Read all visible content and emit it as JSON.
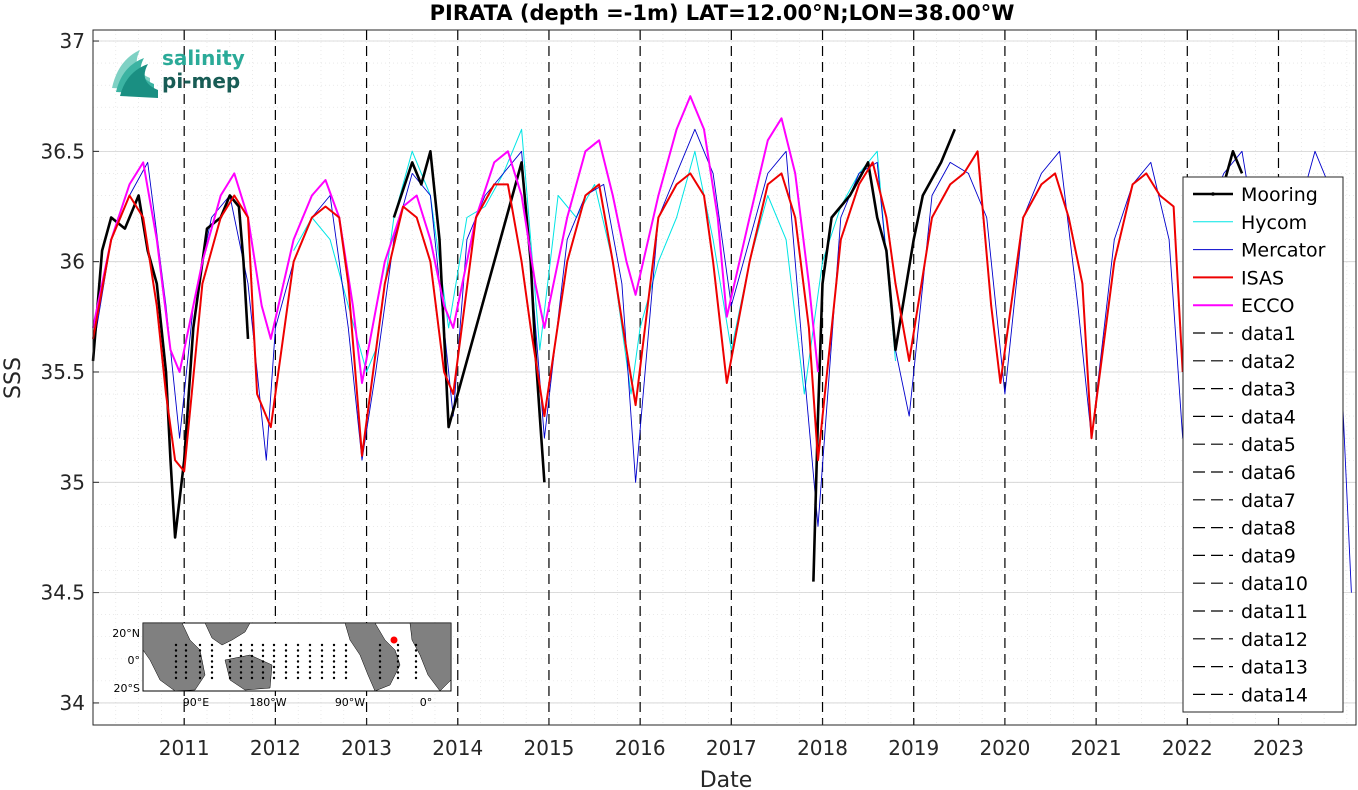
{
  "chart_data": {
    "type": "line",
    "title": "PIRATA (depth =-1m) LAT=12.00°N;LON=38.00°W",
    "xlabel": "Date",
    "ylabel": "SSS",
    "xlim": [
      2010.0,
      2023.85
    ],
    "ylim": [
      33.9,
      37.05
    ],
    "yticks": [
      "34",
      "34.5",
      "35",
      "35.5",
      "36",
      "36.5",
      "37"
    ],
    "xticks": [
      "2011",
      "2012",
      "2013",
      "2014",
      "2015",
      "2016",
      "2017",
      "2018",
      "2019",
      "2020",
      "2021",
      "2022",
      "2023"
    ],
    "grid": true,
    "legend_position": "right",
    "vlines": [
      2011,
      2012,
      2013,
      2014,
      2015,
      2016,
      2017,
      2018,
      2019,
      2020,
      2021,
      2022,
      2023
    ],
    "legend": [
      "Mooring",
      "Hycom",
      "Mercator",
      "ISAS",
      "ECCO",
      "data1",
      "data2",
      "data3",
      "data4",
      "data5",
      "data6",
      "data7",
      "data8",
      "data9",
      "data10",
      "data11",
      "data12",
      "data13",
      "data14"
    ],
    "series": [
      {
        "name": "Mooring",
        "color": "#000000",
        "x": [
          2010.0,
          2010.1,
          2010.2,
          2010.35,
          2010.5,
          2010.6,
          2010.7,
          2010.8,
          2010.85,
          2010.9,
          2011.0,
          2011.1,
          2011.25,
          2011.4,
          2011.5,
          2011.6,
          2011.65,
          2011.7,
          2013.3,
          2013.5,
          2013.6,
          2013.7,
          2013.8,
          2013.9,
          2014.6,
          2014.7,
          2014.8,
          2014.85,
          2014.9,
          2014.95,
          2017.9,
          2017.95,
          2018.0,
          2018.1,
          2018.3,
          2018.5,
          2018.6,
          2018.7,
          2018.8,
          2018.9,
          2019.0,
          2019.1,
          2019.3,
          2019.45,
          2022.4,
          2022.5,
          2022.6
        ],
        "y": [
          35.55,
          36.05,
          36.2,
          36.15,
          36.3,
          36.05,
          35.9,
          35.5,
          35.1,
          34.75,
          35.1,
          35.7,
          36.15,
          36.2,
          36.3,
          36.25,
          36.0,
          35.65,
          36.2,
          36.45,
          36.35,
          36.5,
          36.1,
          35.25,
          36.3,
          36.45,
          36.0,
          35.6,
          35.3,
          35.0,
          34.55,
          35.3,
          35.9,
          36.2,
          36.3,
          36.45,
          36.2,
          36.05,
          35.6,
          35.85,
          36.1,
          36.3,
          36.45,
          36.6,
          36.35,
          36.5,
          36.4
        ]
      },
      {
        "name": "Hycom",
        "color": "#00e5e5",
        "x": [
          2012.2,
          2012.4,
          2012.6,
          2012.8,
          2013.0,
          2013.1,
          2013.3,
          2013.5,
          2013.7,
          2013.9,
          2014.1,
          2014.3,
          2014.5,
          2014.7,
          2014.9,
          2015.1,
          2015.3,
          2015.5,
          2015.7,
          2015.9,
          2016.0,
          2016.2,
          2016.4,
          2016.6,
          2016.8,
          2017.0,
          2017.2,
          2017.4,
          2017.6,
          2017.8,
          2018.0,
          2018.2,
          2018.4,
          2018.6,
          2018.8
        ],
        "y": [
          36.05,
          36.2,
          36.1,
          35.8,
          35.5,
          35.6,
          36.2,
          36.5,
          36.3,
          35.7,
          36.2,
          36.25,
          36.4,
          36.6,
          35.6,
          36.3,
          36.2,
          36.35,
          36.0,
          35.4,
          35.7,
          36.0,
          36.2,
          36.5,
          36.1,
          35.6,
          36.0,
          36.3,
          36.1,
          35.4,
          36.0,
          36.25,
          36.4,
          36.5,
          35.55
        ]
      },
      {
        "name": "Mercator",
        "color": "#0000cc",
        "x": [
          2010.0,
          2010.2,
          2010.4,
          2010.6,
          2010.8,
          2010.95,
          2011.1,
          2011.3,
          2011.5,
          2011.7,
          2011.9,
          2012.0,
          2012.2,
          2012.4,
          2012.6,
          2012.8,
          2012.95,
          2013.1,
          2013.3,
          2013.5,
          2013.7,
          2013.95,
          2014.1,
          2014.3,
          2014.5,
          2014.7,
          2014.95,
          2015.2,
          2015.4,
          2015.6,
          2015.8,
          2015.95,
          2016.2,
          2016.4,
          2016.6,
          2016.8,
          2017.0,
          2017.2,
          2017.4,
          2017.6,
          2017.8,
          2017.95,
          2018.2,
          2018.4,
          2018.6,
          2018.8,
          2018.95,
          2019.2,
          2019.4,
          2019.6,
          2019.8,
          2020.0,
          2020.2,
          2020.4,
          2020.6,
          2020.8,
          2020.95,
          2021.2,
          2021.4,
          2021.6,
          2021.8,
          2021.95,
          2022.2,
          2022.4,
          2022.6,
          2022.8,
          2023.0,
          2023.2,
          2023.4,
          2023.6,
          2023.8
        ],
        "y": [
          35.6,
          36.1,
          36.3,
          36.45,
          35.8,
          35.2,
          35.8,
          36.2,
          36.3,
          35.9,
          35.1,
          35.7,
          36.0,
          36.2,
          36.3,
          35.7,
          35.1,
          35.5,
          36.1,
          36.4,
          36.3,
          35.3,
          36.1,
          36.3,
          36.4,
          36.5,
          35.2,
          36.1,
          36.3,
          36.35,
          35.9,
          35.0,
          36.2,
          36.4,
          36.6,
          36.4,
          35.8,
          36.1,
          36.4,
          36.5,
          35.5,
          34.8,
          36.2,
          36.4,
          36.45,
          35.6,
          35.3,
          36.3,
          36.45,
          36.4,
          36.2,
          35.4,
          36.2,
          36.4,
          36.5,
          35.8,
          35.2,
          36.1,
          36.35,
          36.45,
          36.1,
          35.2,
          36.2,
          36.4,
          36.5,
          36.0,
          35.3,
          36.2,
          36.5,
          36.3,
          34.5
        ]
      },
      {
        "name": "ISAS",
        "color": "#ee0000",
        "x": [
          2010.0,
          2010.2,
          2010.4,
          2010.55,
          2010.7,
          2010.8,
          2010.9,
          2011.0,
          2011.2,
          2011.4,
          2011.55,
          2011.7,
          2011.8,
          2011.95,
          2012.2,
          2012.4,
          2012.55,
          2012.7,
          2012.8,
          2012.95,
          2013.2,
          2013.4,
          2013.55,
          2013.7,
          2013.85,
          2013.95,
          2014.2,
          2014.4,
          2014.55,
          2014.7,
          2014.8,
          2014.95,
          2015.2,
          2015.4,
          2015.55,
          2015.7,
          2015.85,
          2015.95,
          2016.2,
          2016.4,
          2016.55,
          2016.7,
          2016.8,
          2016.95,
          2017.2,
          2017.4,
          2017.55,
          2017.7,
          2017.85,
          2017.95,
          2018.2,
          2018.4,
          2018.55,
          2018.7,
          2018.8,
          2018.95,
          2019.2,
          2019.4,
          2019.55,
          2019.7,
          2019.85,
          2019.95,
          2020.2,
          2020.4,
          2020.55,
          2020.7,
          2020.85,
          2020.95,
          2021.2,
          2021.4,
          2021.55,
          2021.7,
          2021.85,
          2021.95
        ],
        "y": [
          35.65,
          36.1,
          36.3,
          36.2,
          35.8,
          35.4,
          35.1,
          35.05,
          35.9,
          36.2,
          36.3,
          36.2,
          35.4,
          35.25,
          36.0,
          36.2,
          36.25,
          36.2,
          35.9,
          35.12,
          35.9,
          36.25,
          36.2,
          36.0,
          35.5,
          35.4,
          36.2,
          36.35,
          36.35,
          36.0,
          35.7,
          35.3,
          36.0,
          36.3,
          36.35,
          36.0,
          35.6,
          35.35,
          36.2,
          36.35,
          36.4,
          36.3,
          36.0,
          35.45,
          36.0,
          36.35,
          36.4,
          36.2,
          35.7,
          35.1,
          36.1,
          36.35,
          36.45,
          36.2,
          35.9,
          35.55,
          36.2,
          36.35,
          36.4,
          36.5,
          35.8,
          35.45,
          36.2,
          36.35,
          36.4,
          36.2,
          35.9,
          35.2,
          36.0,
          36.35,
          36.4,
          36.3,
          36.25,
          35.5
        ]
      },
      {
        "name": "ECCO",
        "color": "#ff00ff",
        "x": [
          2010.0,
          2010.2,
          2010.4,
          2010.55,
          2010.7,
          2010.85,
          2010.95,
          2011.2,
          2011.4,
          2011.55,
          2011.7,
          2011.85,
          2011.95,
          2012.2,
          2012.4,
          2012.55,
          2012.7,
          2012.85,
          2012.95,
          2013.2,
          2013.4,
          2013.55,
          2013.7,
          2013.85,
          2013.95,
          2014.2,
          2014.4,
          2014.55,
          2014.7,
          2014.85,
          2014.95,
          2015.2,
          2015.4,
          2015.55,
          2015.7,
          2015.85,
          2015.95,
          2016.2,
          2016.4,
          2016.55,
          2016.7,
          2016.85,
          2016.95,
          2017.2,
          2017.4,
          2017.55,
          2017.7,
          2017.85,
          2017.95
        ],
        "y": [
          35.7,
          36.1,
          36.35,
          36.45,
          36.1,
          35.6,
          35.5,
          36.0,
          36.3,
          36.4,
          36.2,
          35.8,
          35.65,
          36.1,
          36.3,
          36.37,
          36.2,
          35.8,
          35.45,
          36.0,
          36.25,
          36.3,
          36.1,
          35.8,
          35.7,
          36.2,
          36.45,
          36.5,
          36.3,
          35.9,
          35.7,
          36.2,
          36.5,
          36.55,
          36.3,
          36.0,
          35.85,
          36.3,
          36.6,
          36.75,
          36.6,
          36.2,
          35.75,
          36.2,
          36.55,
          36.65,
          36.4,
          35.9,
          35.5
        ]
      }
    ]
  },
  "inset_map": {
    "lat_labels": [
      "20°N",
      "0°",
      "20°S"
    ],
    "lon_labels": [
      "90°E",
      "180°W",
      "90°W",
      "0°"
    ]
  },
  "logo": {
    "line1": "salinity",
    "line2": "pi-mep"
  }
}
